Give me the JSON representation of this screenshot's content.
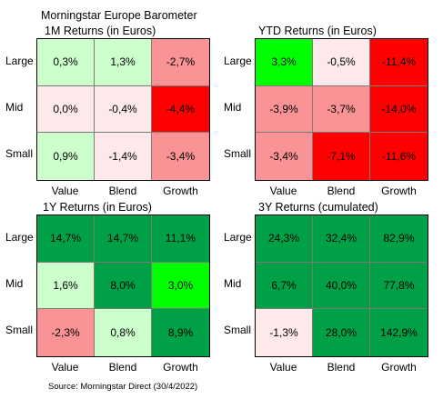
{
  "header": {
    "line1": "Morningstar Europe Barometer",
    "source": "Source: Morningstar Direct (30/4/2022)"
  },
  "row_labels": [
    "Large",
    "Mid",
    "Small"
  ],
  "col_labels": [
    "Value",
    "Blend",
    "Growth"
  ],
  "chart_data": [
    {
      "type": "heatmap",
      "title": "1M Returns (in Euros)",
      "rows": [
        "Large",
        "Mid",
        "Small"
      ],
      "columns": [
        "Value",
        "Blend",
        "Growth"
      ],
      "values": [
        [
          0.3,
          1.3,
          -2.7
        ],
        [
          0.0,
          -0.4,
          -4.4
        ],
        [
          0.9,
          -1.4,
          -3.4
        ]
      ],
      "labels": [
        [
          "0,3%",
          "1,3%",
          "-2,7%"
        ],
        [
          "0,0%",
          "-0,4%",
          "-4,4%"
        ],
        [
          "0,9%",
          "-1,4%",
          "-3,4%"
        ]
      ],
      "colors": [
        [
          "#ccffcc",
          "#ccffcc",
          "#f99395"
        ],
        [
          "#fde9e9",
          "#fde9e9",
          "#ff0000"
        ],
        [
          "#ccffcc",
          "#fde9e9",
          "#f99395"
        ]
      ]
    },
    {
      "type": "heatmap",
      "title": "YTD Returns (in Euros)",
      "rows": [
        "Large",
        "Mid",
        "Small"
      ],
      "columns": [
        "Value",
        "Blend",
        "Growth"
      ],
      "values": [
        [
          3.3,
          -0.5,
          -11.4
        ],
        [
          -3.9,
          -3.7,
          -14.0
        ],
        [
          -3.4,
          -7.1,
          -11.6
        ]
      ],
      "labels": [
        [
          "3,3%",
          "-0,5%",
          "-11,4%"
        ],
        [
          "-3,9%",
          "-3,7%",
          "-14,0%"
        ],
        [
          "-3,4%",
          "-7,1%",
          "-11,6%"
        ]
      ],
      "colors": [
        [
          "#00ff00",
          "#fde9e9",
          "#ff0000"
        ],
        [
          "#f99395",
          "#f99395",
          "#ff0000"
        ],
        [
          "#f99395",
          "#ff0000",
          "#ff0000"
        ]
      ]
    },
    {
      "type": "heatmap",
      "title": "1Y Returns (in Euros)",
      "rows": [
        "Large",
        "Mid",
        "Small"
      ],
      "columns": [
        "Value",
        "Blend",
        "Growth"
      ],
      "values": [
        [
          14.7,
          14.7,
          11.1
        ],
        [
          1.6,
          8.0,
          3.0
        ],
        [
          -2.3,
          0.8,
          8.9
        ]
      ],
      "labels": [
        [
          "14,7%",
          "14,7%",
          "11,1%"
        ],
        [
          "1,6%",
          "8,0%",
          "3,0%"
        ],
        [
          "-2,3%",
          "0,8%",
          "8,9%"
        ]
      ],
      "colors": [
        [
          "#00a047",
          "#00a047",
          "#00a047"
        ],
        [
          "#ccffcc",
          "#00a047",
          "#00ff00"
        ],
        [
          "#f99395",
          "#ccffcc",
          "#00a047"
        ]
      ]
    },
    {
      "type": "heatmap",
      "title": "3Y Returns (cumulated)",
      "rows": [
        "Large",
        "Mid",
        "Small"
      ],
      "columns": [
        "Value",
        "Blend",
        "Growth"
      ],
      "values": [
        [
          24.3,
          32.4,
          82.9
        ],
        [
          6.7,
          40.0,
          77.8
        ],
        [
          -1.3,
          28.0,
          142.9
        ]
      ],
      "labels": [
        [
          "24,3%",
          "32,4%",
          "82,9%"
        ],
        [
          "6,7%",
          "40,0%",
          "77,8%"
        ],
        [
          "-1,3%",
          "28,0%",
          "142,9%"
        ]
      ],
      "colors": [
        [
          "#00a047",
          "#00a047",
          "#00a047"
        ],
        [
          "#00a047",
          "#00a047",
          "#00a047"
        ],
        [
          "#fde9e9",
          "#00a047",
          "#00a047"
        ]
      ]
    }
  ]
}
